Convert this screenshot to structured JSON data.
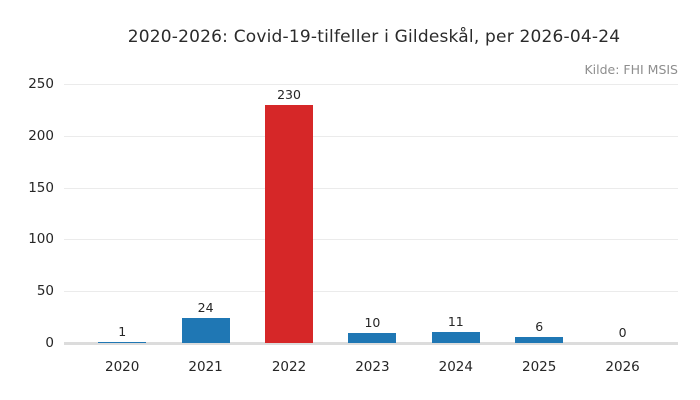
{
  "chart_data": {
    "type": "bar",
    "title": "2020-2026: Covid-19-tilfeller i Gildeskål, per 2026-04-24",
    "source": "Kilde: FHI MSIS",
    "categories": [
      "2020",
      "2021",
      "2022",
      "2023",
      "2024",
      "2025",
      "2026"
    ],
    "values": [
      1,
      24,
      230,
      10,
      11,
      6,
      0
    ],
    "bar_colors": [
      "#1f77b4",
      "#1f77b4",
      "#d62728",
      "#1f77b4",
      "#1f77b4",
      "#1f77b4",
      "#1f77b4"
    ],
    "yticks": [
      0,
      50,
      100,
      150,
      200,
      250
    ],
    "ylim": [
      0,
      250
    ],
    "xlabel": "",
    "ylabel": "",
    "grid": "horizontal",
    "legend": "none",
    "value_labels_shown": true
  },
  "colors": {
    "background": "#ffffff",
    "title_text": "#2b2b2b",
    "tick_text": "#262626",
    "source_text": "#8e8e8e",
    "gridline": "#ebebeb",
    "axis_line": "#dcdcdc",
    "bar_blue": "#1f77b4",
    "bar_red": "#d62728"
  }
}
